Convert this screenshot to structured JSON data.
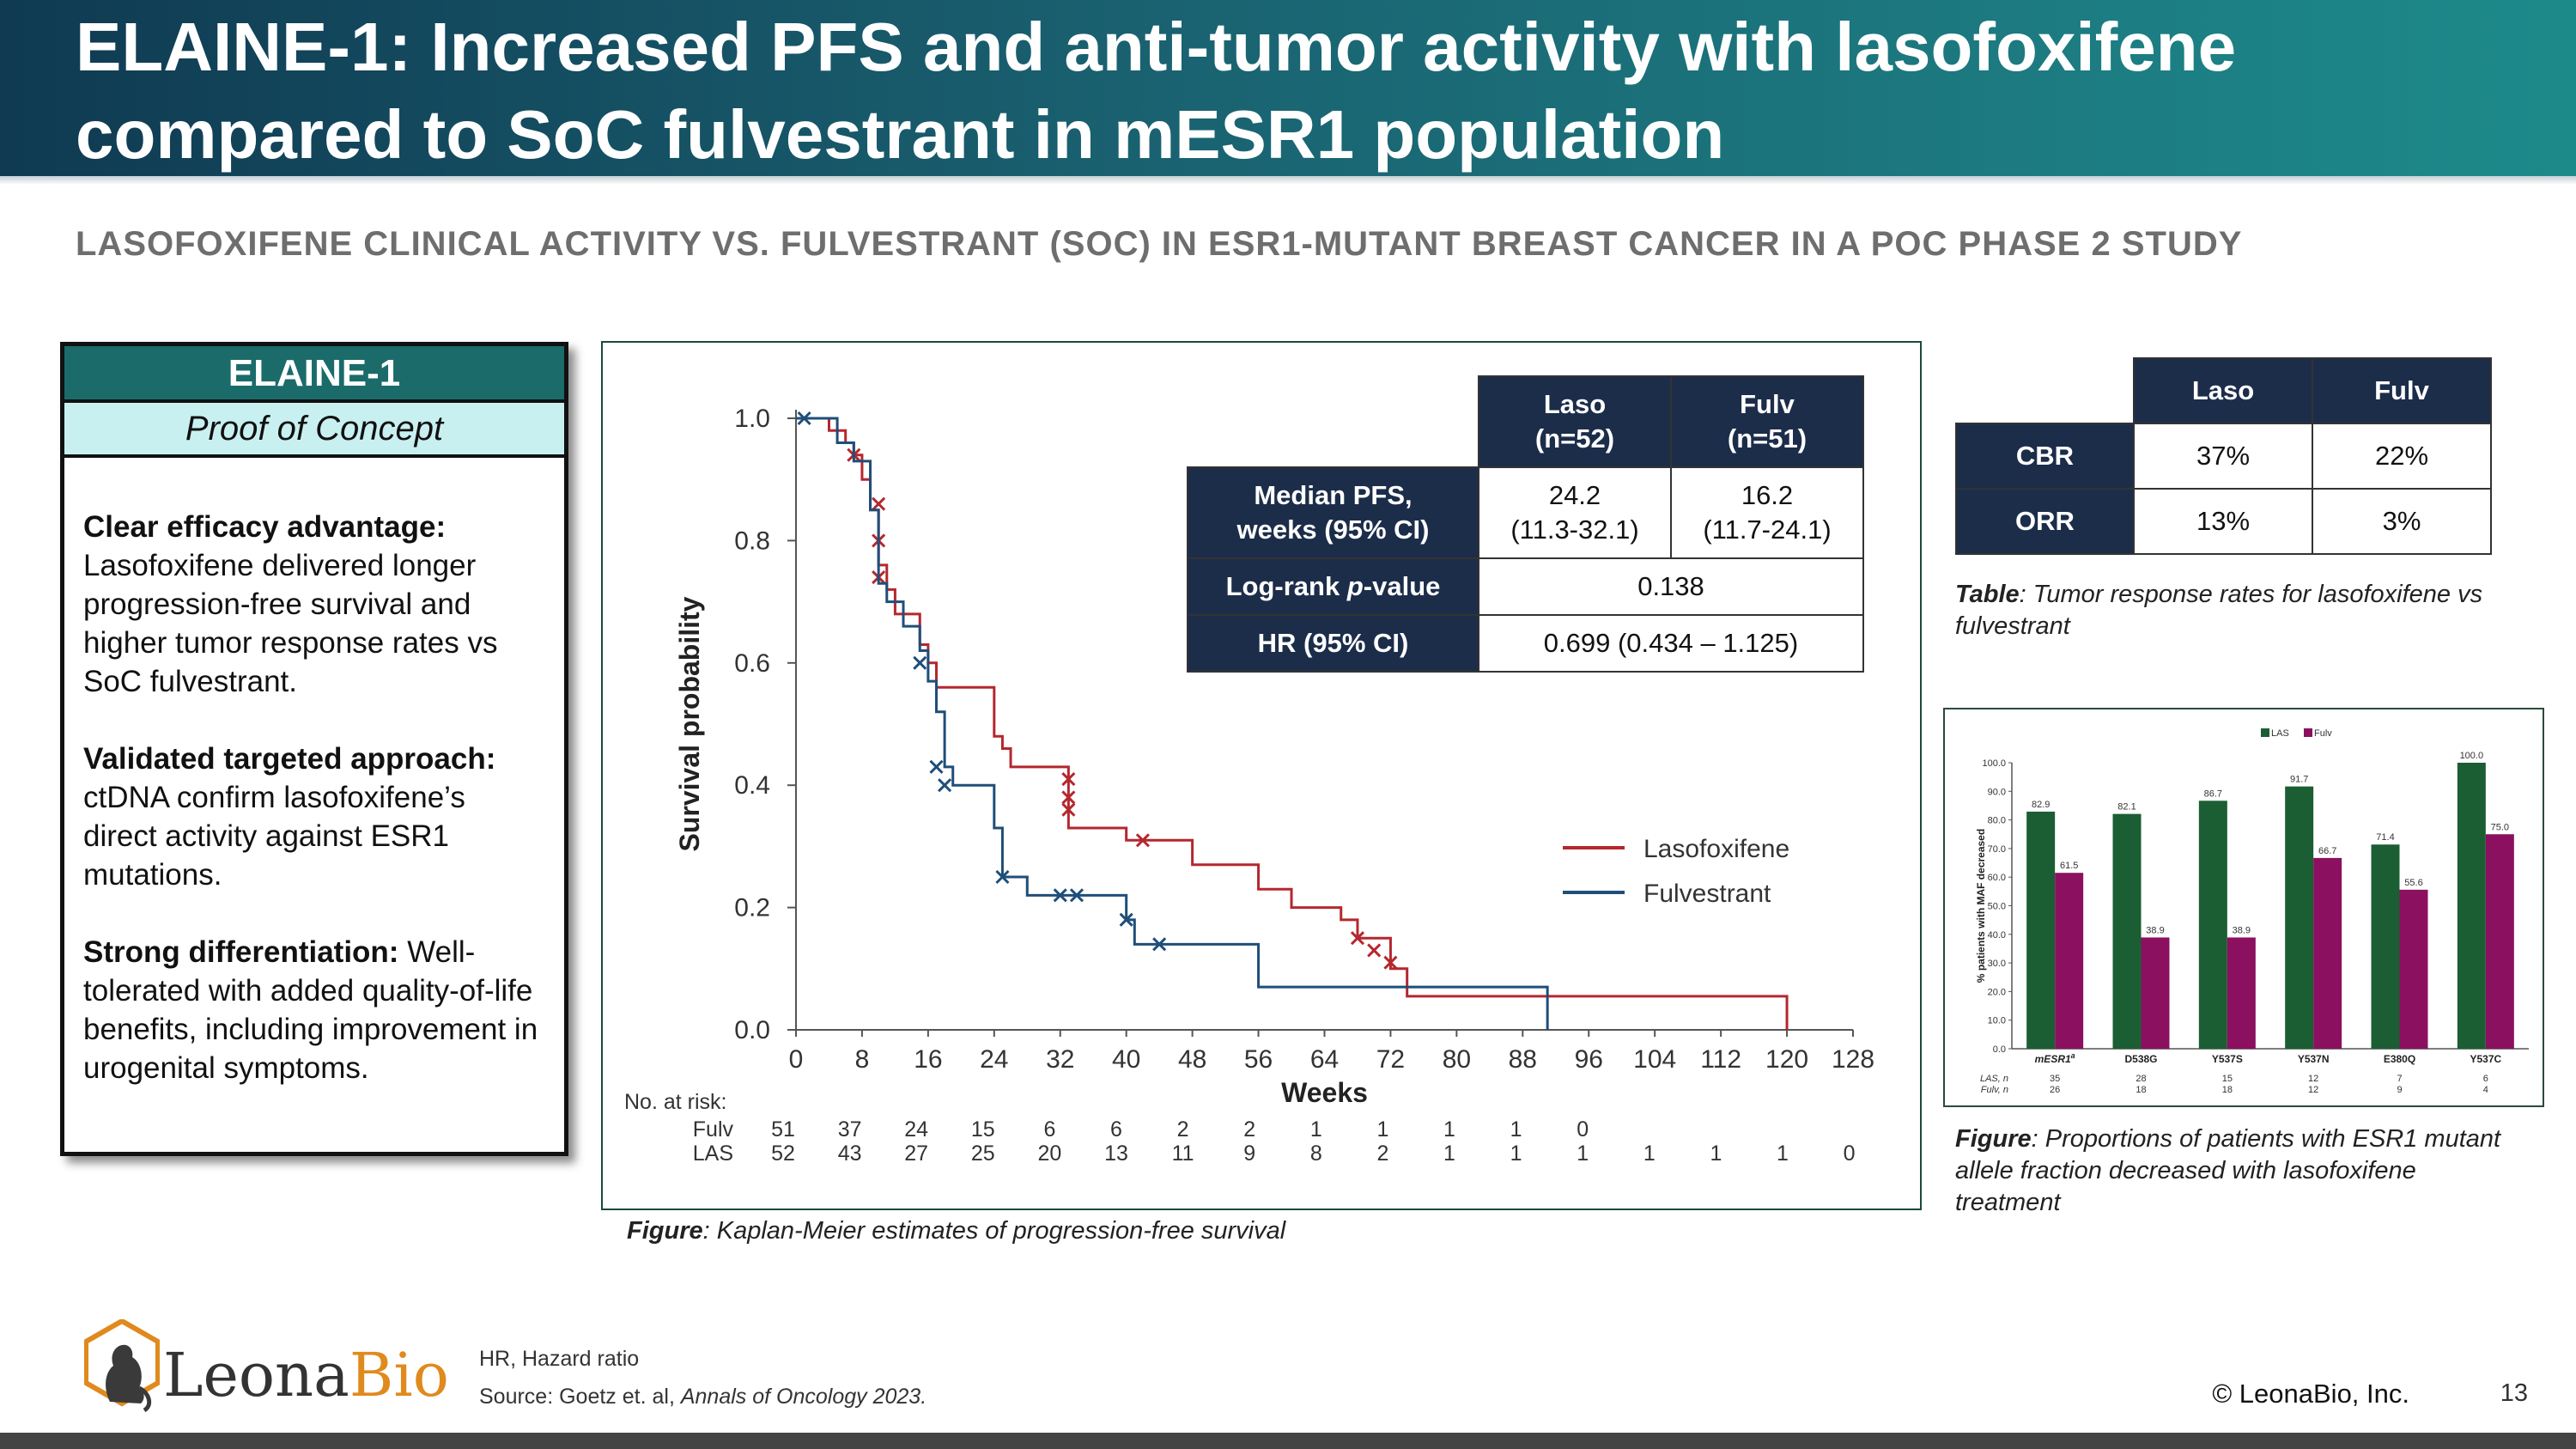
{
  "header": {
    "title": "ELAINE-1: Increased PFS and anti-tumor activity with lasofoxifene compared to SoC fulvestrant in mESR1 population"
  },
  "subtitle": "LASOFOXIFENE CLINICAL ACTIVITY VS. FULVESTRANT (SOC) IN ESR1-MUTANT BREAST CANCER IN A POC PHASE 2 STUDY",
  "elaine_box": {
    "title": "ELAINE-1",
    "subtitle": "Proof of Concept",
    "points": [
      {
        "lead": "Clear efficacy advantage:",
        "text": "Lasofoxifene delivered longer progression-free survival and higher tumor response rates vs SoC fulvestrant."
      },
      {
        "lead": "Validated targeted approach:",
        "text": "ctDNA confirm lasofoxifene’s direct activity against ESR1 mutations."
      },
      {
        "lead": "Strong differentiation:",
        "text": "Well-tolerated with added quality-of-life benefits, including improvement in urogenital symptoms."
      }
    ]
  },
  "stats_table": {
    "col_laso": "Laso",
    "col_laso_n": "(n=52)",
    "col_fulv": "Fulv",
    "col_fulv_n": "(n=51)",
    "row1_label_a": "Median PFS,",
    "row1_label_b": "weeks (95% CI)",
    "row1_laso_a": "24.2",
    "row1_laso_b": "(11.3-32.1)",
    "row1_fulv_a": "16.2",
    "row1_fulv_b": "(11.7-24.1)",
    "row2_label_a": "Log-rank ",
    "row2_label_p": "p",
    "row2_label_b": "-value",
    "row2_value": "0.138",
    "row3_label": "HR (95% CI)",
    "row3_value": "0.699 (0.434 – 1.125)"
  },
  "response_table": {
    "col_laso": "Laso",
    "col_fulv": "Fulv",
    "rows": [
      {
        "label": "CBR",
        "laso": "37%",
        "fulv": "22%"
      },
      {
        "label": "ORR",
        "laso": "13%",
        "fulv": "3%"
      }
    ],
    "caption_lead": "Table",
    "caption_text": ": Tumor response rates for lasofoxifene vs fulvestrant"
  },
  "km_caption_lead": "Figure",
  "km_caption_text": ": Kaplan-Meier estimates of progression-free survival",
  "bar_caption_lead": "Figure",
  "bar_caption_text": ": Proportions of patients with ESR1 mutant allele fraction decreased with lasofoxifene treatment",
  "chart_data": [
    {
      "type": "line",
      "chart": "kaplan-meier",
      "xlabel": "Weeks",
      "ylabel": "Survival probability",
      "xlim": [
        0,
        128
      ],
      "ylim": [
        0,
        1.0
      ],
      "x_ticks": [
        "0",
        "8",
        "16",
        "24",
        "32",
        "40",
        "48",
        "56",
        "64",
        "72",
        "80",
        "88",
        "96",
        "104",
        "112",
        "120",
        "128"
      ],
      "y_ticks": [
        "0.0",
        "0.2",
        "0.4",
        "0.6",
        "0.8",
        "1.0"
      ],
      "legend_position": "right",
      "series": [
        {
          "name": "Lasofoxifene",
          "color": "#b5272e",
          "steps": [
            [
              0,
              1.0
            ],
            [
              4,
              1.0
            ],
            [
              4,
              0.98
            ],
            [
              6,
              0.98
            ],
            [
              6,
              0.96
            ],
            [
              7,
              0.96
            ],
            [
              7,
              0.94
            ],
            [
              8,
              0.94
            ],
            [
              8,
              0.9
            ],
            [
              9,
              0.9
            ],
            [
              9,
              0.85
            ],
            [
              10,
              0.85
            ],
            [
              10,
              0.76
            ],
            [
              11,
              0.76
            ],
            [
              11,
              0.72
            ],
            [
              12,
              0.72
            ],
            [
              12,
              0.68
            ],
            [
              15,
              0.68
            ],
            [
              15,
              0.63
            ],
            [
              16,
              0.63
            ],
            [
              16,
              0.6
            ],
            [
              17,
              0.6
            ],
            [
              17,
              0.56
            ],
            [
              24,
              0.56
            ],
            [
              24,
              0.48
            ],
            [
              25,
              0.48
            ],
            [
              25,
              0.46
            ],
            [
              26,
              0.46
            ],
            [
              26,
              0.43
            ],
            [
              33,
              0.43
            ],
            [
              33,
              0.33
            ],
            [
              40,
              0.33
            ],
            [
              40,
              0.31
            ],
            [
              48,
              0.31
            ],
            [
              48,
              0.27
            ],
            [
              56,
              0.27
            ],
            [
              56,
              0.23
            ],
            [
              60,
              0.23
            ],
            [
              60,
              0.2
            ],
            [
              66,
              0.2
            ],
            [
              66,
              0.18
            ],
            [
              68,
              0.18
            ],
            [
              68,
              0.15
            ],
            [
              72,
              0.15
            ],
            [
              72,
              0.1
            ],
            [
              74,
              0.1
            ],
            [
              74,
              0.055
            ],
            [
              120,
              0.055
            ],
            [
              120,
              0.0
            ]
          ],
          "censored": [
            [
              7,
              0.94
            ],
            [
              10,
              0.86
            ],
            [
              10,
              0.8
            ],
            [
              10,
              0.74
            ],
            [
              33,
              0.41
            ],
            [
              33,
              0.38
            ],
            [
              33,
              0.36
            ],
            [
              42,
              0.31
            ],
            [
              68,
              0.15
            ],
            [
              70,
              0.13
            ],
            [
              72,
              0.11
            ]
          ]
        },
        {
          "name": "Fulvestrant",
          "color": "#1f4e79",
          "steps": [
            [
              0,
              1.0
            ],
            [
              5,
              1.0
            ],
            [
              5,
              0.96
            ],
            [
              7,
              0.96
            ],
            [
              7,
              0.93
            ],
            [
              9,
              0.93
            ],
            [
              9,
              0.85
            ],
            [
              10,
              0.85
            ],
            [
              10,
              0.73
            ],
            [
              11,
              0.73
            ],
            [
              11,
              0.7
            ],
            [
              13,
              0.7
            ],
            [
              13,
              0.66
            ],
            [
              15,
              0.66
            ],
            [
              15,
              0.62
            ],
            [
              16,
              0.62
            ],
            [
              16,
              0.57
            ],
            [
              17,
              0.57
            ],
            [
              17,
              0.52
            ],
            [
              18,
              0.52
            ],
            [
              18,
              0.43
            ],
            [
              19,
              0.43
            ],
            [
              19,
              0.4
            ],
            [
              24,
              0.4
            ],
            [
              24,
              0.33
            ],
            [
              25,
              0.33
            ],
            [
              25,
              0.25
            ],
            [
              28,
              0.25
            ],
            [
              28,
              0.22
            ],
            [
              40,
              0.22
            ],
            [
              40,
              0.18
            ],
            [
              41,
              0.18
            ],
            [
              41,
              0.14
            ],
            [
              56,
              0.14
            ],
            [
              56,
              0.07
            ],
            [
              91,
              0.07
            ],
            [
              91,
              0.0
            ]
          ],
          "censored": [
            [
              1,
              1.0
            ],
            [
              15,
              0.6
            ],
            [
              17,
              0.43
            ],
            [
              18,
              0.4
            ],
            [
              25,
              0.25
            ],
            [
              32,
              0.22
            ],
            [
              34,
              0.22
            ],
            [
              40,
              0.18
            ],
            [
              44,
              0.14
            ]
          ]
        }
      ],
      "risk_table": {
        "title": "No. at risk:",
        "rows": [
          {
            "label": "Fulv",
            "values": [
              "51",
              "37",
              "24",
              "15",
              "6",
              "6",
              "2",
              "2",
              "1",
              "1",
              "1",
              "1",
              "0"
            ]
          },
          {
            "label": "LAS",
            "values": [
              "52",
              "43",
              "27",
              "25",
              "20",
              "13",
              "11",
              "9",
              "8",
              "2",
              "1",
              "1",
              "1",
              "1",
              "1",
              "1",
              "0"
            ]
          }
        ]
      }
    },
    {
      "type": "bar",
      "ylabel": "% patients with MAF decreased",
      "ylim": [
        0,
        100
      ],
      "y_ticks": [
        "0.0",
        "10.0",
        "20.0",
        "30.0",
        "40.0",
        "50.0",
        "60.0",
        "70.0",
        "80.0",
        "90.0",
        "100.0"
      ],
      "legend_position": "top",
      "categories": [
        "mESR1",
        "D538G",
        "Y537S",
        "Y537N",
        "E380Q",
        "Y537C"
      ],
      "category_superscript": "a",
      "series": [
        {
          "name": "LAS",
          "color": "#1b5e33",
          "values": [
            82.9,
            82.1,
            86.7,
            91.7,
            71.4,
            100.0
          ],
          "labels": [
            "82.9",
            "82.1",
            "86.7",
            "91.7",
            "71.4",
            "100.0"
          ]
        },
        {
          "name": "Fulv",
          "color": "#8b1060",
          "values": [
            61.5,
            38.9,
            38.9,
            66.7,
            55.6,
            75.0
          ],
          "labels": [
            "61.5",
            "38.9",
            "38.9",
            "66.7",
            "55.6",
            "75.0"
          ]
        }
      ],
      "n_rows": [
        {
          "label": "LAS, n",
          "values": [
            "35",
            "28",
            "15",
            "12",
            "7",
            "6"
          ]
        },
        {
          "label": "Fulv, n",
          "values": [
            "26",
            "18",
            "18",
            "12",
            "9",
            "4"
          ]
        }
      ]
    }
  ],
  "footer": {
    "logo_main": "Leona",
    "logo_accent": "Bio",
    "note1": "HR, Hazard ratio",
    "note2_prefix": "Source: Goetz et. al, ",
    "note2_journal": "Annals of Oncology 2023.",
    "copyright": "© LeonaBio, Inc.",
    "page": "13"
  }
}
